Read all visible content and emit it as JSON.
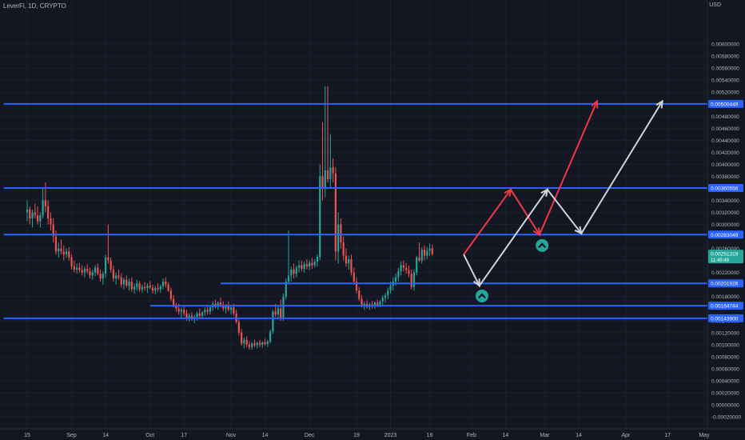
{
  "header": {
    "symbol": "LeverFi, 1D, CRYPTO",
    "currency": "USD"
  },
  "colors": {
    "background": "#131722",
    "grid": "#1c2030",
    "axis_text": "#b2b5be",
    "up": "#26a69a",
    "down": "#ef5350",
    "level": "#2962ff",
    "arrow_red": "#f23645",
    "arrow_white": "#d1d4dc",
    "current_price": "#26a69a"
  },
  "chart_data": {
    "type": "candlestick",
    "title": "",
    "xlabel": "",
    "ylabel": "USD",
    "ylim": [
      -0.0002,
      0.0066
    ],
    "grid": true,
    "y_ticks": [
      "0.00600000",
      "0.00580000",
      "0.00560000",
      "0.00540000",
      "0.00520000",
      "0.00480000",
      "0.00460000",
      "0.00440000",
      "0.00420000",
      "0.00400000",
      "0.00380000",
      "0.00340000",
      "0.00320000",
      "0.00300000",
      "0.00260000",
      "0.00240000",
      "0.00220000",
      "0.00180000",
      "0.00140000",
      "0.00120000",
      "0.00100000",
      "0.00080000",
      "0.00060000",
      "0.00040000",
      "0.00020000",
      "0.00000000",
      "-0.00020000"
    ],
    "x_ticks": [
      {
        "label": "15",
        "day": 0
      },
      {
        "label": "Sep",
        "day": 17
      },
      {
        "label": "14",
        "day": 30
      },
      {
        "label": "Oct",
        "day": 47
      },
      {
        "label": "17",
        "day": 60
      },
      {
        "label": "Nov",
        "day": 78
      },
      {
        "label": "14",
        "day": 91
      },
      {
        "label": "Dec",
        "day": 108
      },
      {
        "label": "19",
        "day": 126
      },
      {
        "label": "2023",
        "day": 139
      },
      {
        "label": "16",
        "day": 154
      },
      {
        "label": "Feb",
        "day": 170
      },
      {
        "label": "14",
        "day": 183
      },
      {
        "label": "Mar",
        "day": 198
      },
      {
        "label": "14",
        "day": 211
      },
      {
        "label": "Apr",
        "day": 229
      },
      {
        "label": "17",
        "day": 245
      },
      {
        "label": "May",
        "day": 259
      }
    ],
    "levels": [
      {
        "value": 0.00500449,
        "label": "0.00500449",
        "from_day": -9
      },
      {
        "value": 0.00360556,
        "label": "0.00360556",
        "from_day": -9
      },
      {
        "value": 0.00283049,
        "label": "0.00283049",
        "from_day": -9
      },
      {
        "value": 0.00201926,
        "label": "0.00201926",
        "from_day": 74
      },
      {
        "value": 0.00164744,
        "label": "0.00164744",
        "from_day": 47
      },
      {
        "value": 0.001439,
        "label": "0.00143900",
        "from_day": -9
      }
    ],
    "current_price": {
      "value": 0.00251319,
      "label": "0.00251319",
      "countdown": "11:49:49"
    },
    "projections": [
      {
        "color": "red",
        "points": [
          [
            167,
            0.0025
          ],
          [
            185,
            0.00358
          ],
          [
            196,
            0.00283
          ],
          [
            218,
            0.00505
          ]
        ]
      },
      {
        "color": "white",
        "points": [
          [
            167,
            0.0025
          ],
          [
            173,
            0.00198
          ],
          [
            199,
            0.00358
          ],
          [
            212,
            0.00285
          ],
          [
            243,
            0.00505
          ]
        ]
      }
    ],
    "markers": [
      {
        "day": 174,
        "value": 0.00181,
        "icon": "chevron-up-icon"
      },
      {
        "day": 197,
        "value": 0.00265,
        "icon": "chevron-up-icon"
      }
    ],
    "candles": [
      {
        "o": 0.0032,
        "h": 0.0034,
        "l": 0.00305,
        "c": 0.00325
      },
      {
        "o": 0.00325,
        "h": 0.0033,
        "l": 0.003,
        "c": 0.0031
      },
      {
        "o": 0.0031,
        "h": 0.00325,
        "l": 0.00295,
        "c": 0.0032
      },
      {
        "o": 0.0032,
        "h": 0.00335,
        "l": 0.0031,
        "c": 0.00315
      },
      {
        "o": 0.00315,
        "h": 0.0033,
        "l": 0.003,
        "c": 0.00305
      },
      {
        "o": 0.00305,
        "h": 0.0032,
        "l": 0.00295,
        "c": 0.00315
      },
      {
        "o": 0.00315,
        "h": 0.0036,
        "l": 0.0031,
        "c": 0.0034
      },
      {
        "o": 0.0034,
        "h": 0.0037,
        "l": 0.0032,
        "c": 0.0033
      },
      {
        "o": 0.0033,
        "h": 0.0034,
        "l": 0.003,
        "c": 0.0031
      },
      {
        "o": 0.0031,
        "h": 0.0032,
        "l": 0.0029,
        "c": 0.003
      },
      {
        "o": 0.003,
        "h": 0.0031,
        "l": 0.0027,
        "c": 0.0028
      },
      {
        "o": 0.0028,
        "h": 0.0029,
        "l": 0.0025,
        "c": 0.00255
      },
      {
        "o": 0.00255,
        "h": 0.0027,
        "l": 0.00245,
        "c": 0.0026
      },
      {
        "o": 0.0026,
        "h": 0.00275,
        "l": 0.0025,
        "c": 0.00255
      },
      {
        "o": 0.00255,
        "h": 0.00265,
        "l": 0.0024,
        "c": 0.0025
      },
      {
        "o": 0.0025,
        "h": 0.0026,
        "l": 0.00245,
        "c": 0.00255
      },
      {
        "o": 0.00255,
        "h": 0.00262,
        "l": 0.0024,
        "c": 0.00245
      },
      {
        "o": 0.00245,
        "h": 0.0025,
        "l": 0.00225,
        "c": 0.0023
      },
      {
        "o": 0.0023,
        "h": 0.0024,
        "l": 0.0022,
        "c": 0.00225
      },
      {
        "o": 0.00225,
        "h": 0.00235,
        "l": 0.00218,
        "c": 0.00228
      },
      {
        "o": 0.00228,
        "h": 0.00236,
        "l": 0.0022,
        "c": 0.00224
      },
      {
        "o": 0.00224,
        "h": 0.00232,
        "l": 0.00215,
        "c": 0.0022
      },
      {
        "o": 0.0022,
        "h": 0.0023,
        "l": 0.00212,
        "c": 0.00226
      },
      {
        "o": 0.00226,
        "h": 0.00234,
        "l": 0.00218,
        "c": 0.00222
      },
      {
        "o": 0.00222,
        "h": 0.00228,
        "l": 0.0021,
        "c": 0.00215
      },
      {
        "o": 0.00215,
        "h": 0.00225,
        "l": 0.00208,
        "c": 0.0022
      },
      {
        "o": 0.0022,
        "h": 0.00232,
        "l": 0.00214,
        "c": 0.00228
      },
      {
        "o": 0.00228,
        "h": 0.00235,
        "l": 0.00215,
        "c": 0.00218
      },
      {
        "o": 0.00218,
        "h": 0.00225,
        "l": 0.00205,
        "c": 0.0021
      },
      {
        "o": 0.0021,
        "h": 0.00222,
        "l": 0.002,
        "c": 0.00218
      },
      {
        "o": 0.00218,
        "h": 0.0025,
        "l": 0.00212,
        "c": 0.00245
      },
      {
        "o": 0.00245,
        "h": 0.003,
        "l": 0.00235,
        "c": 0.0024
      },
      {
        "o": 0.0024,
        "h": 0.00245,
        "l": 0.0022,
        "c": 0.00225
      },
      {
        "o": 0.00225,
        "h": 0.00232,
        "l": 0.00205,
        "c": 0.0021
      },
      {
        "o": 0.0021,
        "h": 0.0022,
        "l": 0.002,
        "c": 0.00215
      },
      {
        "o": 0.00215,
        "h": 0.00225,
        "l": 0.00208,
        "c": 0.00212
      },
      {
        "o": 0.00212,
        "h": 0.00218,
        "l": 0.00195,
        "c": 0.002
      },
      {
        "o": 0.002,
        "h": 0.00212,
        "l": 0.00192,
        "c": 0.00208
      },
      {
        "o": 0.00208,
        "h": 0.00215,
        "l": 0.00195,
        "c": 0.00198
      },
      {
        "o": 0.00198,
        "h": 0.0021,
        "l": 0.0019,
        "c": 0.00205
      },
      {
        "o": 0.00205,
        "h": 0.00212,
        "l": 0.00188,
        "c": 0.00192
      },
      {
        "o": 0.00192,
        "h": 0.00202,
        "l": 0.00185,
        "c": 0.00196
      },
      {
        "o": 0.00196,
        "h": 0.00208,
        "l": 0.0019,
        "c": 0.00202
      },
      {
        "o": 0.00202,
        "h": 0.00206,
        "l": 0.00188,
        "c": 0.00192
      },
      {
        "o": 0.00192,
        "h": 0.002,
        "l": 0.00186,
        "c": 0.00196
      },
      {
        "o": 0.00196,
        "h": 0.00204,
        "l": 0.0019,
        "c": 0.00194
      },
      {
        "o": 0.00194,
        "h": 0.00202,
        "l": 0.00186,
        "c": 0.00198
      },
      {
        "o": 0.00198,
        "h": 0.00206,
        "l": 0.00192,
        "c": 0.00195
      },
      {
        "o": 0.00195,
        "h": 0.002,
        "l": 0.00185,
        "c": 0.0019
      },
      {
        "o": 0.0019,
        "h": 0.00198,
        "l": 0.00184,
        "c": 0.00194
      },
      {
        "o": 0.00194,
        "h": 0.00202,
        "l": 0.00188,
        "c": 0.00192
      },
      {
        "o": 0.00192,
        "h": 0.002,
        "l": 0.00186,
        "c": 0.00197
      },
      {
        "o": 0.00197,
        "h": 0.0021,
        "l": 0.00192,
        "c": 0.00205
      },
      {
        "o": 0.00205,
        "h": 0.00212,
        "l": 0.00195,
        "c": 0.002
      },
      {
        "o": 0.002,
        "h": 0.00204,
        "l": 0.00188,
        "c": 0.0019
      },
      {
        "o": 0.0019,
        "h": 0.00195,
        "l": 0.00172,
        "c": 0.00176
      },
      {
        "o": 0.00176,
        "h": 0.00182,
        "l": 0.00162,
        "c": 0.00165
      },
      {
        "o": 0.00165,
        "h": 0.0017,
        "l": 0.00155,
        "c": 0.0016
      },
      {
        "o": 0.0016,
        "h": 0.00168,
        "l": 0.0015,
        "c": 0.00155
      },
      {
        "o": 0.00155,
        "h": 0.00162,
        "l": 0.00145,
        "c": 0.00158
      },
      {
        "o": 0.00158,
        "h": 0.00164,
        "l": 0.00148,
        "c": 0.00152
      },
      {
        "o": 0.00152,
        "h": 0.00158,
        "l": 0.0014,
        "c": 0.00145
      },
      {
        "o": 0.00145,
        "h": 0.00152,
        "l": 0.00138,
        "c": 0.00148
      },
      {
        "o": 0.00148,
        "h": 0.00154,
        "l": 0.0014,
        "c": 0.00143
      },
      {
        "o": 0.00143,
        "h": 0.0015,
        "l": 0.00136,
        "c": 0.00146
      },
      {
        "o": 0.00146,
        "h": 0.00155,
        "l": 0.0014,
        "c": 0.00152
      },
      {
        "o": 0.00152,
        "h": 0.0016,
        "l": 0.00145,
        "c": 0.00148
      },
      {
        "o": 0.00148,
        "h": 0.00156,
        "l": 0.00142,
        "c": 0.00154
      },
      {
        "o": 0.00154,
        "h": 0.00162,
        "l": 0.00148,
        "c": 0.00158
      },
      {
        "o": 0.00158,
        "h": 0.00166,
        "l": 0.0015,
        "c": 0.00155
      },
      {
        "o": 0.00155,
        "h": 0.00164,
        "l": 0.0015,
        "c": 0.00162
      },
      {
        "o": 0.00162,
        "h": 0.00172,
        "l": 0.00156,
        "c": 0.00168
      },
      {
        "o": 0.00168,
        "h": 0.00175,
        "l": 0.0016,
        "c": 0.00163
      },
      {
        "o": 0.00163,
        "h": 0.00172,
        "l": 0.00158,
        "c": 0.0017
      },
      {
        "o": 0.0017,
        "h": 0.00178,
        "l": 0.00162,
        "c": 0.00166
      },
      {
        "o": 0.00166,
        "h": 0.00172,
        "l": 0.00156,
        "c": 0.0016
      },
      {
        "o": 0.0016,
        "h": 0.00168,
        "l": 0.00152,
        "c": 0.00165
      },
      {
        "o": 0.00165,
        "h": 0.00172,
        "l": 0.00155,
        "c": 0.00158
      },
      {
        "o": 0.00158,
        "h": 0.00165,
        "l": 0.0015,
        "c": 0.00162
      },
      {
        "o": 0.00162,
        "h": 0.00168,
        "l": 0.00148,
        "c": 0.00152
      },
      {
        "o": 0.00152,
        "h": 0.00158,
        "l": 0.00135,
        "c": 0.00138
      },
      {
        "o": 0.00138,
        "h": 0.00142,
        "l": 0.00115,
        "c": 0.0012
      },
      {
        "o": 0.0012,
        "h": 0.00126,
        "l": 0.00098,
        "c": 0.00102
      },
      {
        "o": 0.00102,
        "h": 0.00112,
        "l": 0.00094,
        "c": 0.00108
      },
      {
        "o": 0.00108,
        "h": 0.00114,
        "l": 0.00096,
        "c": 0.001
      },
      {
        "o": 0.001,
        "h": 0.00106,
        "l": 0.00092,
        "c": 0.00096
      },
      {
        "o": 0.00096,
        "h": 0.00104,
        "l": 0.00092,
        "c": 0.00102
      },
      {
        "o": 0.00102,
        "h": 0.00108,
        "l": 0.00096,
        "c": 0.00099
      },
      {
        "o": 0.00099,
        "h": 0.00105,
        "l": 0.00094,
        "c": 0.00103
      },
      {
        "o": 0.00103,
        "h": 0.00108,
        "l": 0.00096,
        "c": 0.001
      },
      {
        "o": 0.001,
        "h": 0.00106,
        "l": 0.00095,
        "c": 0.00104
      },
      {
        "o": 0.00104,
        "h": 0.0011,
        "l": 0.00098,
        "c": 0.00101
      },
      {
        "o": 0.00101,
        "h": 0.00108,
        "l": 0.00096,
        "c": 0.00105
      },
      {
        "o": 0.00105,
        "h": 0.00125,
        "l": 0.00102,
        "c": 0.00122
      },
      {
        "o": 0.00122,
        "h": 0.00158,
        "l": 0.00118,
        "c": 0.00155
      },
      {
        "o": 0.00155,
        "h": 0.00168,
        "l": 0.00146,
        "c": 0.0015
      },
      {
        "o": 0.0015,
        "h": 0.00165,
        "l": 0.00142,
        "c": 0.0016
      },
      {
        "o": 0.0016,
        "h": 0.00175,
        "l": 0.0014,
        "c": 0.00145
      },
      {
        "o": 0.00145,
        "h": 0.00185,
        "l": 0.0014,
        "c": 0.0018
      },
      {
        "o": 0.0018,
        "h": 0.0021,
        "l": 0.00175,
        "c": 0.00205
      },
      {
        "o": 0.00205,
        "h": 0.0029,
        "l": 0.002,
        "c": 0.00215
      },
      {
        "o": 0.00215,
        "h": 0.0023,
        "l": 0.00205,
        "c": 0.00225
      },
      {
        "o": 0.00225,
        "h": 0.00235,
        "l": 0.0021,
        "c": 0.00218
      },
      {
        "o": 0.00218,
        "h": 0.00232,
        "l": 0.00212,
        "c": 0.00228
      },
      {
        "o": 0.00228,
        "h": 0.0024,
        "l": 0.0022,
        "c": 0.00232
      },
      {
        "o": 0.00232,
        "h": 0.0024,
        "l": 0.00222,
        "c": 0.00226
      },
      {
        "o": 0.00226,
        "h": 0.00238,
        "l": 0.0022,
        "c": 0.00234
      },
      {
        "o": 0.00234,
        "h": 0.00242,
        "l": 0.00225,
        "c": 0.0023
      },
      {
        "o": 0.0023,
        "h": 0.0024,
        "l": 0.00224,
        "c": 0.00236
      },
      {
        "o": 0.00236,
        "h": 0.00244,
        "l": 0.00226,
        "c": 0.00232
      },
      {
        "o": 0.00232,
        "h": 0.00242,
        "l": 0.00228,
        "c": 0.00238
      },
      {
        "o": 0.00238,
        "h": 0.0025,
        "l": 0.0023,
        "c": 0.00246
      },
      {
        "o": 0.00246,
        "h": 0.004,
        "l": 0.0024,
        "c": 0.0038
      },
      {
        "o": 0.0038,
        "h": 0.0047,
        "l": 0.0034,
        "c": 0.0036
      },
      {
        "o": 0.0036,
        "h": 0.0053,
        "l": 0.00345,
        "c": 0.0039
      },
      {
        "o": 0.0039,
        "h": 0.0053,
        "l": 0.0037,
        "c": 0.00375
      },
      {
        "o": 0.00375,
        "h": 0.0045,
        "l": 0.0036,
        "c": 0.00395
      },
      {
        "o": 0.00395,
        "h": 0.0041,
        "l": 0.0037,
        "c": 0.00385
      },
      {
        "o": 0.00385,
        "h": 0.00395,
        "l": 0.0024,
        "c": 0.00255
      },
      {
        "o": 0.00255,
        "h": 0.0032,
        "l": 0.00235,
        "c": 0.003
      },
      {
        "o": 0.003,
        "h": 0.0031,
        "l": 0.0026,
        "c": 0.0027
      },
      {
        "o": 0.0027,
        "h": 0.0028,
        "l": 0.0024,
        "c": 0.00248
      },
      {
        "o": 0.00248,
        "h": 0.0026,
        "l": 0.0023,
        "c": 0.00235
      },
      {
        "o": 0.00235,
        "h": 0.00248,
        "l": 0.00225,
        "c": 0.00242
      },
      {
        "o": 0.00242,
        "h": 0.0025,
        "l": 0.00215,
        "c": 0.0022
      },
      {
        "o": 0.0022,
        "h": 0.00228,
        "l": 0.002,
        "c": 0.00205
      },
      {
        "o": 0.00205,
        "h": 0.00212,
        "l": 0.00185,
        "c": 0.0019
      },
      {
        "o": 0.0019,
        "h": 0.00196,
        "l": 0.00172,
        "c": 0.00176
      },
      {
        "o": 0.00176,
        "h": 0.00182,
        "l": 0.00162,
        "c": 0.00166
      },
      {
        "o": 0.00166,
        "h": 0.00172,
        "l": 0.00158,
        "c": 0.00168
      },
      {
        "o": 0.00168,
        "h": 0.00174,
        "l": 0.0016,
        "c": 0.00163
      },
      {
        "o": 0.00163,
        "h": 0.0017,
        "l": 0.00158,
        "c": 0.00167
      },
      {
        "o": 0.00167,
        "h": 0.00173,
        "l": 0.0016,
        "c": 0.00164
      },
      {
        "o": 0.00164,
        "h": 0.00172,
        "l": 0.0016,
        "c": 0.0017
      },
      {
        "o": 0.0017,
        "h": 0.00175,
        "l": 0.00162,
        "c": 0.00166
      },
      {
        "o": 0.00166,
        "h": 0.00174,
        "l": 0.00162,
        "c": 0.00172
      },
      {
        "o": 0.00172,
        "h": 0.00182,
        "l": 0.00166,
        "c": 0.00178
      },
      {
        "o": 0.00178,
        "h": 0.00186,
        "l": 0.0017,
        "c": 0.00182
      },
      {
        "o": 0.00182,
        "h": 0.00195,
        "l": 0.00176,
        "c": 0.0019
      },
      {
        "o": 0.0019,
        "h": 0.00205,
        "l": 0.00185,
        "c": 0.00198
      },
      {
        "o": 0.00198,
        "h": 0.00212,
        "l": 0.0019,
        "c": 0.00205
      },
      {
        "o": 0.00205,
        "h": 0.00218,
        "l": 0.00198,
        "c": 0.00212
      },
      {
        "o": 0.00212,
        "h": 0.00228,
        "l": 0.00205,
        "c": 0.00222
      },
      {
        "o": 0.00222,
        "h": 0.00238,
        "l": 0.00215,
        "c": 0.00232
      },
      {
        "o": 0.00232,
        "h": 0.0024,
        "l": 0.00222,
        "c": 0.00228
      },
      {
        "o": 0.00228,
        "h": 0.00236,
        "l": 0.00218,
        "c": 0.00224
      },
      {
        "o": 0.00224,
        "h": 0.00232,
        "l": 0.00212,
        "c": 0.00218
      },
      {
        "o": 0.00218,
        "h": 0.00225,
        "l": 0.00192,
        "c": 0.00196
      },
      {
        "o": 0.00196,
        "h": 0.00225,
        "l": 0.0019,
        "c": 0.0022
      },
      {
        "o": 0.0022,
        "h": 0.00248,
        "l": 0.00215,
        "c": 0.00245
      },
      {
        "o": 0.00245,
        "h": 0.0027,
        "l": 0.00238,
        "c": 0.0024
      },
      {
        "o": 0.0024,
        "h": 0.00262,
        "l": 0.00235,
        "c": 0.00258
      },
      {
        "o": 0.00258,
        "h": 0.00265,
        "l": 0.0024,
        "c": 0.00248
      },
      {
        "o": 0.00248,
        "h": 0.00262,
        "l": 0.00242,
        "c": 0.00256
      },
      {
        "o": 0.00256,
        "h": 0.00268,
        "l": 0.00248,
        "c": 0.0026
      },
      {
        "o": 0.0026,
        "h": 0.00266,
        "l": 0.00248,
        "c": 0.00251
      }
    ]
  }
}
